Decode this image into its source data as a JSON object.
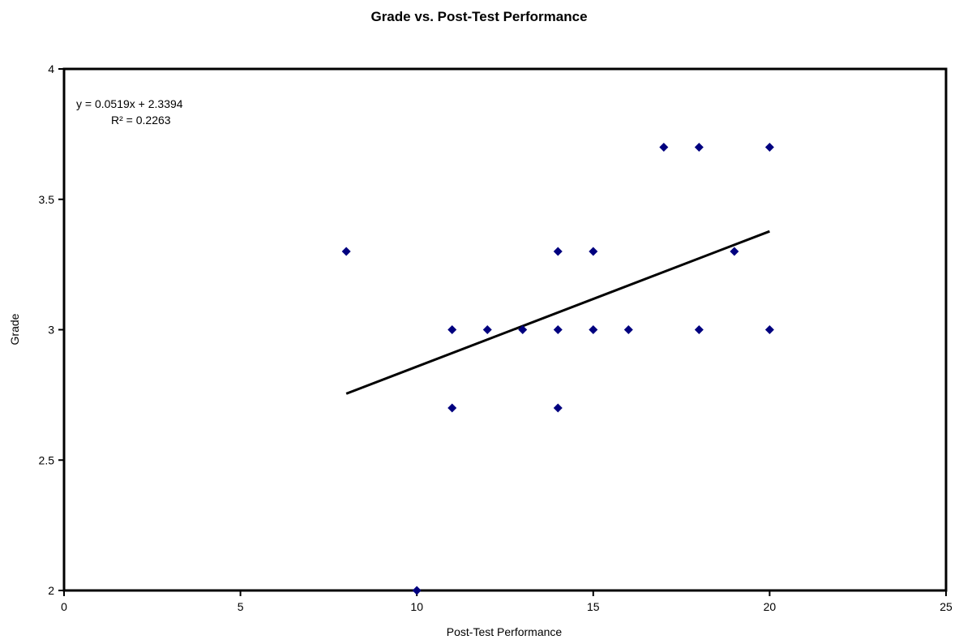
{
  "chart_data": {
    "type": "scatter",
    "title": "Grade vs. Post-Test Performance",
    "xlabel": "Post-Test Performance",
    "ylabel": "Grade",
    "xlim": [
      0,
      25
    ],
    "ylim": [
      2,
      4
    ],
    "x_ticks": [
      "0",
      "5",
      "10",
      "15",
      "20",
      "25"
    ],
    "y_ticks": [
      "2",
      "2.5",
      "3",
      "3.5",
      "4"
    ],
    "grid": false,
    "legend": "none",
    "marker": "diamond",
    "marker_color": "#00007f",
    "points": [
      {
        "x": 8,
        "y": 3.3
      },
      {
        "x": 10,
        "y": 2.0
      },
      {
        "x": 11,
        "y": 3.0
      },
      {
        "x": 11,
        "y": 2.7
      },
      {
        "x": 12,
        "y": 3.0
      },
      {
        "x": 13,
        "y": 3.0
      },
      {
        "x": 14,
        "y": 3.3
      },
      {
        "x": 14,
        "y": 3.0
      },
      {
        "x": 14,
        "y": 2.7
      },
      {
        "x": 15,
        "y": 3.3
      },
      {
        "x": 15,
        "y": 3.0
      },
      {
        "x": 16,
        "y": 3.0
      },
      {
        "x": 17,
        "y": 3.7
      },
      {
        "x": 18,
        "y": 3.7
      },
      {
        "x": 18,
        "y": 3.0
      },
      {
        "x": 19,
        "y": 3.3
      },
      {
        "x": 20,
        "y": 3.7
      },
      {
        "x": 20,
        "y": 3.0
      }
    ],
    "trendline": {
      "slope": 0.0519,
      "intercept": 2.3394,
      "x_range": [
        8,
        20
      ],
      "equation_label": "y = 0.0519x + 2.3394",
      "r2_label": "R² = 0.2263",
      "color": "#000000"
    }
  }
}
